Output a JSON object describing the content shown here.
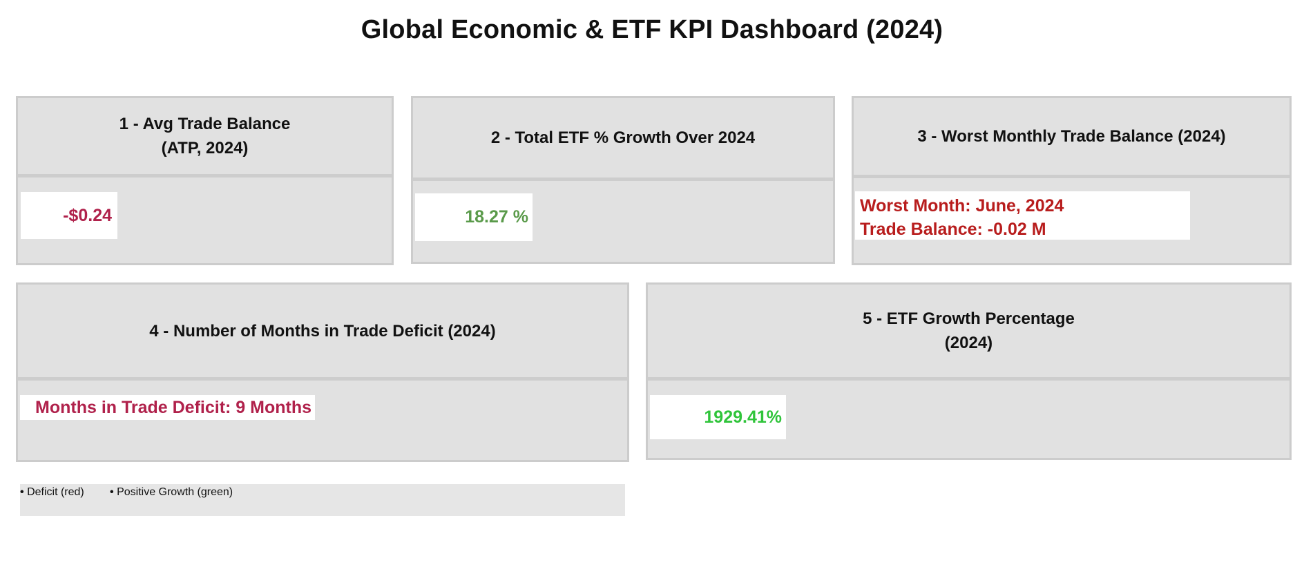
{
  "dashboard": {
    "title": "Global Economic & ETF KPI Dashboard (2024)"
  },
  "cards": {
    "avg_trade_balance": {
      "title_line1": "1 - Avg Trade Balance",
      "title_line2": "(ATP, 2024)",
      "value": "-$0.24",
      "value_color": "#b0214b"
    },
    "total_etf_growth": {
      "title_line1": "2 - Total ETF % Growth Over 2024",
      "value": "18.27 %",
      "value_color": "#5a9a4a"
    },
    "worst_month": {
      "title_line1": "3 - Worst Monthly Trade Balance (2024)",
      "value_line1": "Worst Month: June, 2024",
      "value_line2": "Trade Balance: -0.02 M",
      "value_color": "#b81d1d"
    },
    "months_in_deficit": {
      "title_line1": "4 - Number of Months in Trade Deficit (2024)",
      "value": "Months in Trade Deficit: 9 Months",
      "value_color": "#b0214b"
    },
    "etf_growth_percentage": {
      "title_line1": "5 - ETF Growth Percentage",
      "title_line2": "(2024)",
      "value": "1929.41%",
      "value_color": "#2fc43a"
    }
  },
  "legend": {
    "items": [
      {
        "bullet": "•",
        "label": "Deficit (red)"
      },
      {
        "bullet": "•",
        "label": "Positive Growth (green)"
      }
    ]
  }
}
